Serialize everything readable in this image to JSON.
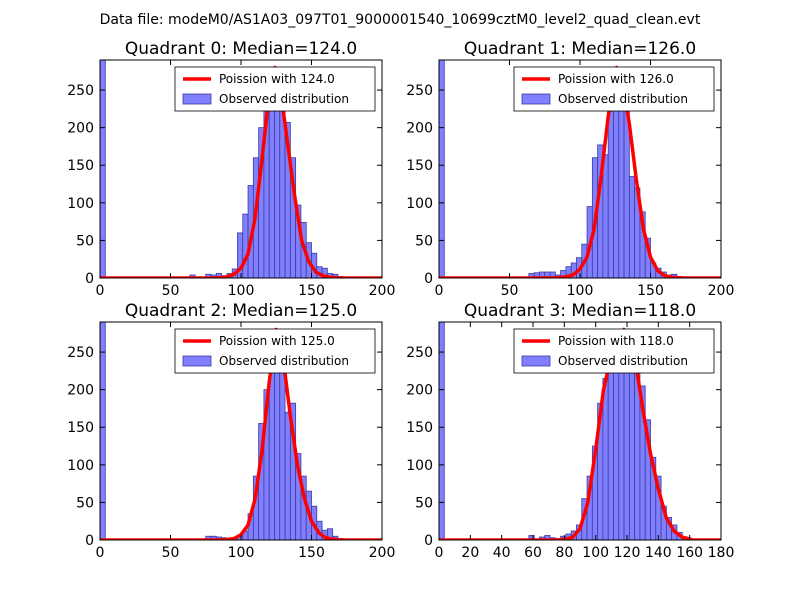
{
  "suptitle": "Data file: modeM0/AS1A03_097T01_9000001540_10699cztM0_level2_quad_clean.evt",
  "colors": {
    "observed_fill": "#8080ff",
    "observed_edge": "#3b3b9e",
    "poisson": "#ff0000"
  },
  "chart_data": [
    {
      "type": "bar",
      "title": "Quadrant 0: Median=124.0",
      "xlim": [
        0,
        200
      ],
      "ylim": [
        0,
        290
      ],
      "xticks": [
        0,
        50,
        100,
        150,
        200
      ],
      "xticklabels": [
        "0",
        "50",
        "100",
        "150",
        "200"
      ],
      "yticks": [
        0,
        50,
        100,
        150,
        200,
        250
      ],
      "yticklabels": [
        "0",
        "50",
        "100",
        "150",
        "200",
        "250"
      ],
      "legend": [
        "Poission with 124.0",
        "Observed distribution"
      ],
      "legend_loc": "top-right",
      "bins": [
        0,
        3.75,
        60,
        63.75,
        67.5,
        71.25,
        75,
        78.75,
        82.5,
        86.25,
        90,
        93.75,
        97.5,
        101.25,
        105,
        108.75,
        112.5,
        116.25,
        120,
        123.75,
        127.5,
        131.25,
        135,
        138.75,
        142.5,
        146.25,
        150,
        153.75,
        157.5,
        161.25,
        165,
        168.75,
        172.5,
        176.25,
        180,
        183.75,
        187.5,
        191.25,
        195
      ],
      "counts": [
        290,
        0,
        1,
        4,
        0,
        0,
        5,
        4,
        6,
        3,
        6,
        12,
        60,
        85,
        123,
        160,
        200,
        235,
        270,
        272,
        240,
        207,
        160,
        97,
        74,
        47,
        33,
        15,
        13,
        6,
        5,
        2,
        1,
        0,
        0,
        0,
        1,
        0
      ],
      "poisson_x": [
        0,
        80,
        85,
        90,
        95,
        100,
        105,
        110,
        115,
        120,
        124,
        128,
        133,
        138,
        143,
        148,
        153,
        158,
        163,
        170,
        200
      ],
      "poisson_y": [
        0,
        0,
        0.5,
        1.5,
        5,
        13,
        32,
        80,
        160,
        245,
        280,
        250,
        180,
        110,
        50,
        22,
        8,
        3,
        1,
        0,
        0
      ]
    },
    {
      "type": "bar",
      "title": "Quadrant 1: Median=126.0",
      "xlim": [
        0,
        200
      ],
      "ylim": [
        0,
        290
      ],
      "xticks": [
        0,
        50,
        100,
        150,
        200
      ],
      "xticklabels": [
        "0",
        "50",
        "100",
        "150",
        "200"
      ],
      "yticks": [
        0,
        50,
        100,
        150,
        200,
        250
      ],
      "yticklabels": [
        "0",
        "50",
        "100",
        "150",
        "200",
        "250"
      ],
      "legend": [
        "Poission with 126.0",
        "Observed distribution"
      ],
      "legend_loc": "top-right",
      "bins": [
        0,
        3.75,
        63.75,
        67.5,
        71.25,
        75,
        78.75,
        82.5,
        86.25,
        90,
        93.75,
        97.5,
        101.25,
        105,
        108.75,
        112.5,
        116.25,
        120,
        123.75,
        127.5,
        131.25,
        135,
        138.75,
        142.5,
        146.25,
        150,
        153.75,
        157.5,
        161.25,
        165,
        168.75,
        172.5,
        176.25,
        180,
        183.75,
        187.5
      ],
      "counts": [
        290,
        0,
        6,
        7,
        8,
        8,
        8,
        4,
        10,
        15,
        20,
        27,
        45,
        95,
        160,
        177,
        164,
        240,
        255,
        275,
        255,
        135,
        120,
        88,
        53,
        20,
        13,
        8,
        4,
        5,
        2,
        1,
        1,
        0,
        1
      ],
      "poisson_x": [
        0,
        80,
        85,
        90,
        95,
        100,
        105,
        110,
        115,
        120,
        126,
        130,
        135,
        140,
        145,
        150,
        155,
        160,
        165,
        172,
        200
      ],
      "poisson_y": [
        0,
        0,
        0.5,
        1.5,
        4,
        12,
        28,
        65,
        135,
        215,
        280,
        262,
        205,
        130,
        65,
        28,
        10,
        3,
        1,
        0,
        0
      ]
    },
    {
      "type": "bar",
      "title": "Quadrant 2: Median=125.0",
      "xlim": [
        0,
        200
      ],
      "ylim": [
        0,
        290
      ],
      "xticks": [
        0,
        50,
        100,
        150,
        200
      ],
      "xticklabels": [
        "0",
        "50",
        "100",
        "150",
        "200"
      ],
      "yticks": [
        0,
        50,
        100,
        150,
        200,
        250
      ],
      "yticklabels": [
        "0",
        "50",
        "100",
        "150",
        "200",
        "250"
      ],
      "legend": [
        "Poission with 125.0",
        "Observed distribution"
      ],
      "legend_loc": "top-right",
      "bins": [
        0,
        3.75,
        75,
        78.75,
        82.5,
        86.25,
        90,
        93.75,
        97.5,
        101.25,
        105,
        108.75,
        112.5,
        116.25,
        120,
        123.75,
        127.5,
        131.25,
        135,
        138.75,
        142.5,
        146.25,
        150,
        153.75,
        157.5,
        161.25,
        165,
        168.75,
        172.5,
        176.25,
        180,
        183.75,
        187.5
      ],
      "counts": [
        290,
        0,
        5,
        5,
        4,
        3,
        1,
        2,
        6,
        12,
        35,
        85,
        155,
        200,
        267,
        275,
        230,
        170,
        182,
        115,
        85,
        65,
        45,
        25,
        13,
        15,
        5,
        2,
        1,
        0,
        0,
        0
      ],
      "poisson_x": [
        0,
        85,
        90,
        95,
        100,
        105,
        110,
        115,
        120,
        125,
        130,
        135,
        140,
        145,
        150,
        155,
        160,
        165,
        172,
        200
      ],
      "poisson_y": [
        0,
        0,
        0.5,
        2,
        7,
        20,
        55,
        120,
        210,
        280,
        240,
        165,
        100,
        55,
        25,
        10,
        3,
        1,
        0,
        0
      ]
    },
    {
      "type": "bar",
      "title": "Quadrant 3: Median=118.0",
      "xlim": [
        0,
        180
      ],
      "ylim": [
        0,
        290
      ],
      "xticks": [
        0,
        20,
        40,
        60,
        80,
        100,
        120,
        140,
        160,
        180
      ],
      "xticklabels": [
        "0",
        "20",
        "40",
        "60",
        "80",
        "100",
        "120",
        "140",
        "160",
        "180"
      ],
      "yticks": [
        0,
        50,
        100,
        150,
        200,
        250
      ],
      "yticklabels": [
        "0",
        "50",
        "100",
        "150",
        "200",
        "250"
      ],
      "legend": [
        "Poission with 118.0",
        "Observed distribution"
      ],
      "legend_loc": "top-right",
      "bins": [
        0,
        3.375,
        57.375,
        60.75,
        64.125,
        67.5,
        70.875,
        74.25,
        77.625,
        81,
        84.375,
        87.75,
        91.125,
        94.5,
        97.875,
        101.25,
        104.625,
        108,
        111.375,
        114.75,
        118.125,
        121.5,
        124.875,
        128.25,
        131.625,
        135,
        138.375,
        141.75,
        145.125,
        148.5,
        151.875,
        155.25,
        158.625
      ],
      "counts": [
        290,
        0,
        6,
        1,
        4,
        6,
        3,
        2,
        5,
        8,
        12,
        20,
        55,
        85,
        125,
        182,
        215,
        240,
        255,
        275,
        265,
        260,
        255,
        205,
        160,
        110,
        85,
        45,
        30,
        20,
        10,
        4
      ],
      "poisson_x": [
        0,
        75,
        80,
        85,
        90,
        95,
        100,
        105,
        110,
        114,
        118,
        122,
        126,
        130,
        135,
        140,
        145,
        150,
        155,
        162,
        180
      ],
      "poisson_y": [
        0,
        0,
        1,
        3,
        15,
        50,
        120,
        200,
        245,
        270,
        280,
        270,
        230,
        175,
        115,
        68,
        30,
        12,
        4,
        0,
        0
      ]
    }
  ]
}
